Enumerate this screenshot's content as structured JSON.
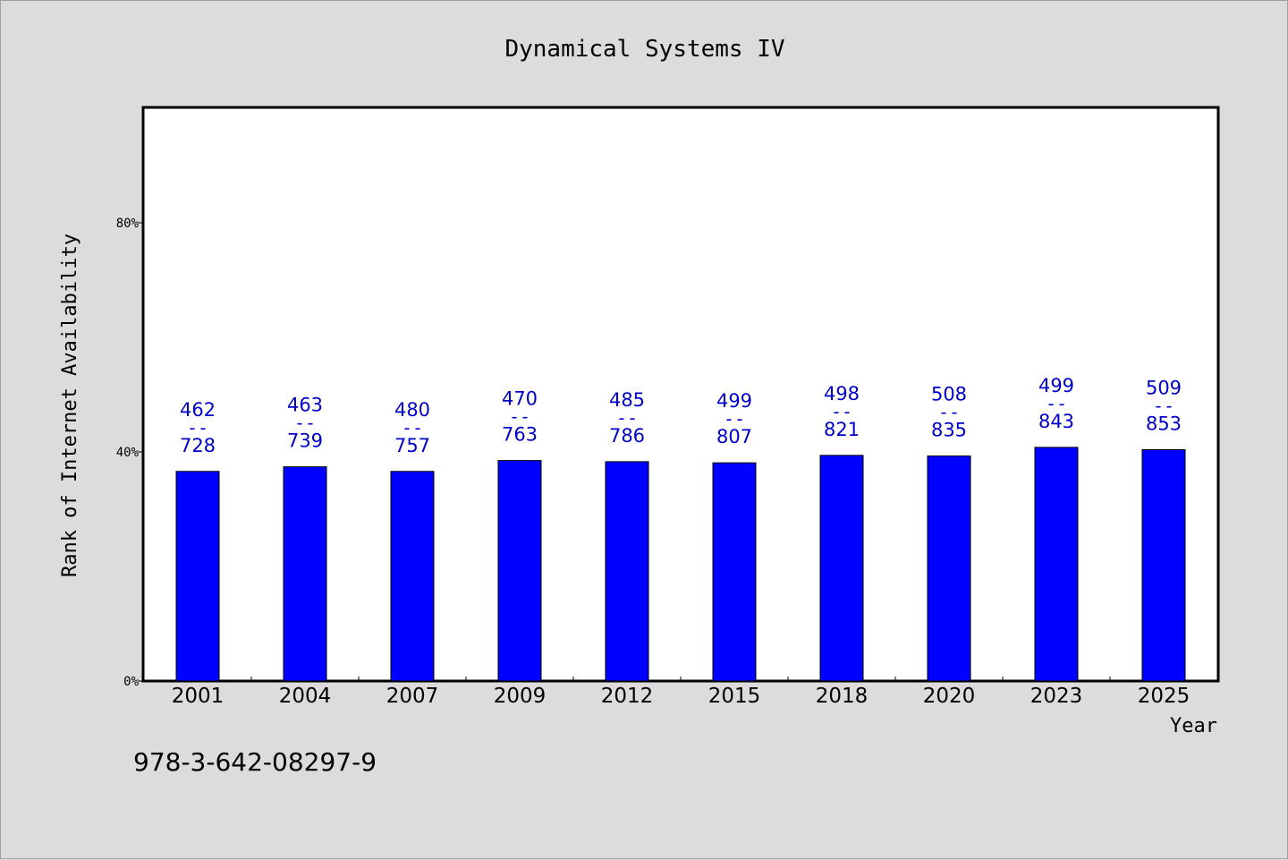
{
  "chart_data": {
    "type": "bar",
    "title": "Dynamical Systems IV",
    "xlabel": "Year",
    "ylabel": "Rank of Internet Availability",
    "categories": [
      "2001",
      "2004",
      "2007",
      "2009",
      "2012",
      "2015",
      "2018",
      "2020",
      "2023",
      "2025"
    ],
    "values": [
      36.6,
      37.4,
      36.6,
      38.5,
      38.3,
      38.1,
      39.4,
      39.3,
      40.8,
      40.4
    ],
    "labels_top": [
      "462",
      "463",
      "480",
      "470",
      "485",
      "499",
      "498",
      "508",
      "499",
      "509"
    ],
    "labels_sep": "--",
    "labels_bottom": [
      "728",
      "739",
      "757",
      "763",
      "786",
      "807",
      "821",
      "835",
      "843",
      "853"
    ],
    "ylim": [
      0,
      100
    ],
    "yticks": [
      0,
      40,
      80
    ],
    "ytick_labels": [
      "0%",
      "40%",
      "80%"
    ],
    "grid": false,
    "bar_color": "#0000ff",
    "label_color": "#0000cc"
  },
  "footer": {
    "isbn": "978-3-642-08297-9"
  }
}
